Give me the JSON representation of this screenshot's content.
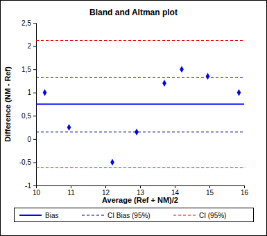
{
  "chart_data": {
    "type": "scatter",
    "title": "Bland and Altman plot",
    "x_label": "Average (Ref + NM)/2",
    "y_label": "Difference (NM - Ref)",
    "xlim": [
      10,
      16
    ],
    "xticks": [
      10,
      11,
      12,
      13,
      14,
      15,
      16
    ],
    "ylim": [
      -1,
      2.5
    ],
    "yticks": [
      -1,
      {
        "value": -0.5,
        "label": "-0,5"
      },
      0,
      {
        "value": 0.5,
        "label": "0,5"
      },
      1,
      {
        "value": 1.5,
        "label": "1,5"
      },
      2,
      {
        "value": 2.5,
        "label": "2,5"
      }
    ],
    "legend": "bottom",
    "series": [
      {
        "type": "scatter",
        "color": "#0000ff",
        "marker": "diamond",
        "x": [
          10.25,
          10.95,
          12.2,
          12.9,
          13.7,
          14.2,
          14.95,
          15.85
        ],
        "values": [
          1.0,
          0.25,
          -0.5,
          0.15,
          1.2,
          1.5,
          1.35,
          1.0
        ]
      },
      {
        "type": "hline",
        "name": "Bias",
        "color": "#0000ff",
        "line_style": "solid",
        "values": [
          0.75
        ]
      },
      {
        "type": "hline",
        "name": "CI Bias (95%)",
        "color": "#000080",
        "line_style": "dashed",
        "values": [
          0.15,
          1.33
        ]
      },
      {
        "type": "hline",
        "name": "CI (95%)",
        "color": "#ff0000",
        "line_style": "dashed",
        "values": [
          -0.62,
          2.12
        ]
      }
    ]
  }
}
